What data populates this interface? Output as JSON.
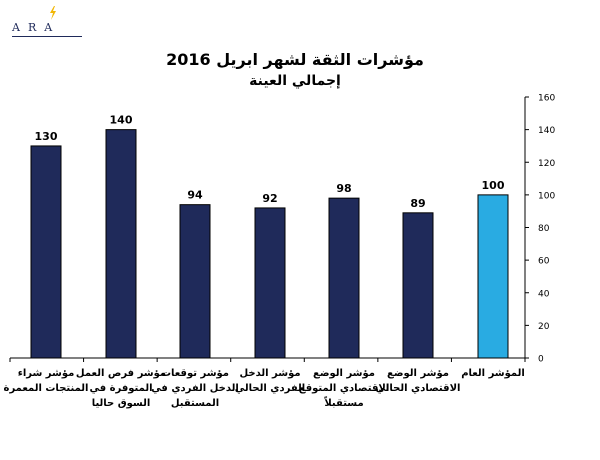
{
  "logo": {
    "text": "ARA"
  },
  "colors": {
    "primary_bar": "#1f2a5a",
    "highlight_bar": "#29abe2",
    "axis": "#000000"
  },
  "chart_data": {
    "type": "bar",
    "title": "مؤشرات الثقة لشهر ابريل 2016",
    "subtitle": "إجمالي العينة",
    "categories": [
      "مؤشر شراء المنتجات المعمرة",
      "مؤشر فرص العمل المتوفرة في السوق حاليا",
      "مؤشر توقعات الدخل الفردي في المستقبل",
      "مؤشر الدخل الفردي الحالي",
      "مؤشر الوضع الاقتصادي المتوقع مستقبلاً",
      "مؤشر الوضع الاقتصادي الحالي",
      "المؤشر العام"
    ],
    "values": [
      130,
      140,
      94,
      92,
      98,
      89,
      100
    ],
    "highlight_index": 6,
    "ylim": [
      0,
      160
    ],
    "yticks": [
      0,
      20,
      40,
      60,
      80,
      100,
      120,
      140,
      160
    ],
    "y_axis_side": "right",
    "grid": false,
    "legend": "none"
  }
}
